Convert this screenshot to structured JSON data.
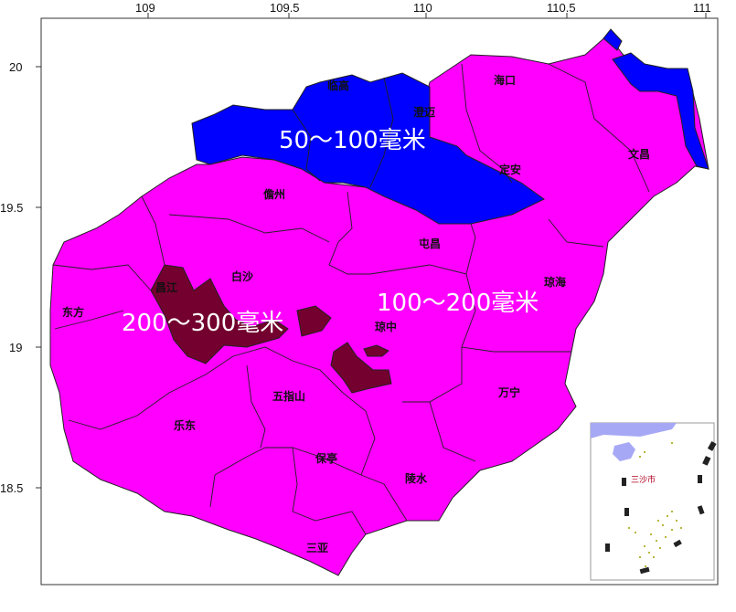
{
  "axes": {
    "x_ticks": [
      "109",
      "109.5",
      "110",
      "110.5",
      "111"
    ],
    "y_ticks": [
      "20",
      "19.5",
      "19",
      "18.5"
    ]
  },
  "zones": [
    {
      "label": "50～100毫米",
      "color": "#0000ff"
    },
    {
      "label": "100～200毫米",
      "color": "#ff00ff"
    },
    {
      "label": "200～300毫米",
      "color": "#73002e"
    }
  ],
  "cities": {
    "haikou": "海口",
    "lingao": "临高",
    "chengmai": "澄迈",
    "dingan": "定安",
    "wenchang": "文昌",
    "danzhou": "儋州",
    "tunchang": "屯昌",
    "baisha": "白沙",
    "qionghai": "琼海",
    "changjiang": "昌江",
    "dongfang": "东方",
    "qiongzhong": "琼中",
    "wanning": "万宁",
    "wuzhishan": "五指山",
    "ledong": "乐东",
    "baoting": "保亭",
    "lingshui": "陵水",
    "sanya": "三亚"
  },
  "inset": {
    "label": "三沙市"
  }
}
